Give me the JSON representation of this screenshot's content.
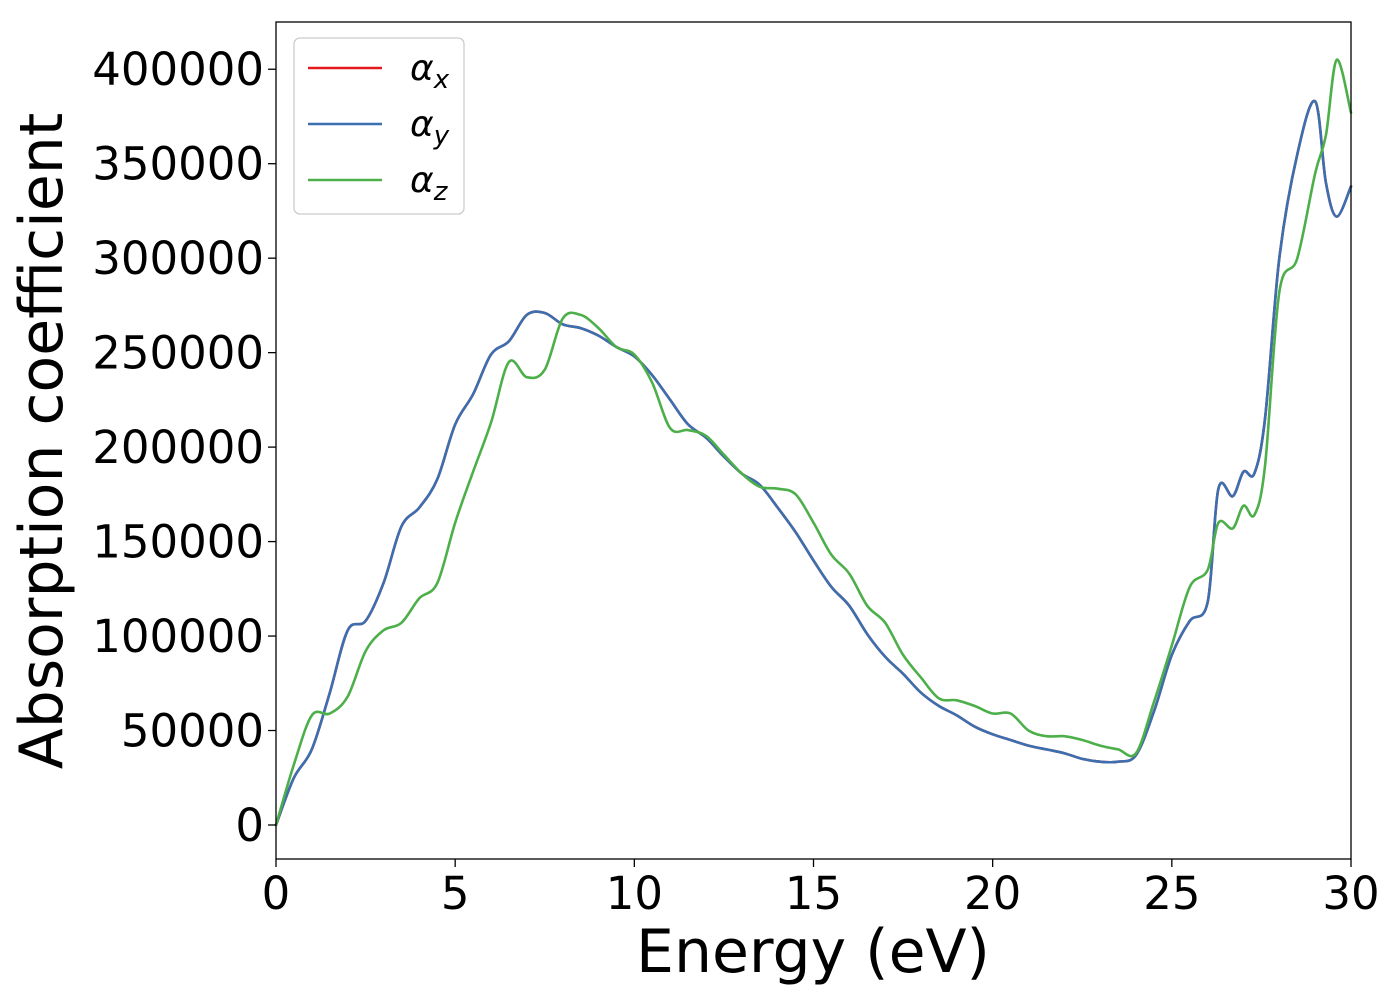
{
  "chart_data": {
    "type": "line",
    "title": "",
    "xlabel": "Energy (eV)",
    "ylabel": "Absorption coefficient",
    "xlim": [
      0,
      30
    ],
    "ylim": [
      -18000,
      425000
    ],
    "xticks": [
      0,
      5,
      10,
      15,
      20,
      25,
      30
    ],
    "yticks": [
      0,
      50000,
      100000,
      150000,
      200000,
      250000,
      300000,
      350000,
      400000
    ],
    "xtick_labels": [
      "0",
      "5",
      "10",
      "15",
      "20",
      "25",
      "30"
    ],
    "ytick_labels": [
      "0",
      "50000",
      "100000",
      "150000",
      "200000",
      "250000",
      "300000",
      "350000",
      "400000"
    ],
    "grid": false,
    "legend_position": "top-left",
    "x": [
      0,
      0.5,
      1,
      1.5,
      2,
      2.5,
      3,
      3.5,
      4,
      4.5,
      5,
      5.5,
      6,
      6.5,
      7,
      7.5,
      8,
      8.5,
      9,
      9.5,
      10,
      10.5,
      11,
      11.5,
      12,
      12.5,
      13,
      13.5,
      14,
      14.5,
      15,
      15.5,
      16,
      16.5,
      17,
      17.5,
      18,
      18.5,
      19,
      19.5,
      20,
      20.5,
      21,
      21.5,
      22,
      22.5,
      23,
      23.5,
      24,
      24.5,
      25,
      25.5,
      26,
      26.3,
      26.7,
      27,
      27.3,
      27.6,
      28,
      28.5,
      29,
      29.3,
      29.6,
      30
    ],
    "series": [
      {
        "name": "α",
        "subscript": "x",
        "color": "#e41a1c",
        "values": [
          0,
          25000,
          40000,
          70000,
          103000,
          108000,
          128000,
          158000,
          168000,
          183000,
          212000,
          228000,
          249000,
          256000,
          270000,
          271000,
          265000,
          263000,
          259000,
          253000,
          248000,
          238000,
          225000,
          212000,
          205000,
          195000,
          186000,
          180000,
          168000,
          155000,
          140000,
          126000,
          116000,
          101000,
          89000,
          80000,
          70000,
          63000,
          58000,
          52000,
          48000,
          45000,
          42000,
          40000,
          38000,
          35000,
          33500,
          33500,
          37000,
          60000,
          90000,
          108000,
          118000,
          178000,
          174000,
          187000,
          186000,
          215000,
          300000,
          355000,
          383000,
          340000,
          322000,
          338000
        ]
      },
      {
        "name": "α",
        "subscript": "y",
        "color": "#3a6fb0",
        "values": [
          0,
          25000,
          40000,
          70000,
          103000,
          108000,
          128000,
          158000,
          168000,
          183000,
          212000,
          228000,
          249000,
          256000,
          270000,
          271000,
          265000,
          263000,
          259000,
          253000,
          248000,
          238000,
          225000,
          212000,
          205000,
          195000,
          186000,
          180000,
          168000,
          155000,
          140000,
          126000,
          116000,
          101000,
          89000,
          80000,
          70000,
          63000,
          58000,
          52000,
          48000,
          45000,
          42000,
          40000,
          38000,
          35000,
          33500,
          33500,
          37000,
          60000,
          90000,
          108000,
          118000,
          178000,
          174000,
          187000,
          186000,
          215000,
          300000,
          355000,
          383000,
          340000,
          322000,
          338000
        ]
      },
      {
        "name": "α",
        "subscript": "z",
        "color": "#4daf4a",
        "values": [
          0,
          32000,
          58000,
          59000,
          68000,
          92000,
          103000,
          107000,
          120000,
          128000,
          160000,
          187000,
          213000,
          245000,
          237000,
          241000,
          268000,
          270000,
          263000,
          253000,
          249000,
          234000,
          210000,
          209000,
          206000,
          196000,
          186000,
          179000,
          178000,
          175000,
          160000,
          143000,
          133000,
          116000,
          107000,
          90000,
          78000,
          67000,
          66000,
          63000,
          59000,
          59000,
          50000,
          47000,
          47000,
          45000,
          42000,
          40000,
          38000,
          65000,
          95000,
          126000,
          135000,
          160000,
          157000,
          169000,
          164000,
          190000,
          282000,
          300000,
          345000,
          365000,
          405000,
          377000
        ]
      }
    ]
  }
}
